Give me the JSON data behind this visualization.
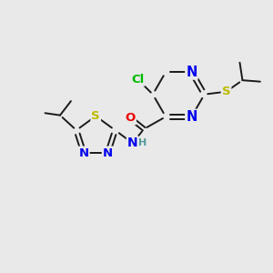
{
  "background_color": "#e9e9e9",
  "bond_color": "#1a1a1a",
  "bond_width": 1.4,
  "atom_colors": {
    "N": "#0000ee",
    "S": "#bbbb00",
    "O": "#ee0000",
    "Cl": "#00bb00",
    "H": "#559999",
    "C": "#1a1a1a"
  },
  "font_size": 9.5,
  "figsize": [
    3.0,
    3.0
  ],
  "dpi": 100,
  "xlim": [
    0,
    10
  ],
  "ylim": [
    0,
    10
  ]
}
